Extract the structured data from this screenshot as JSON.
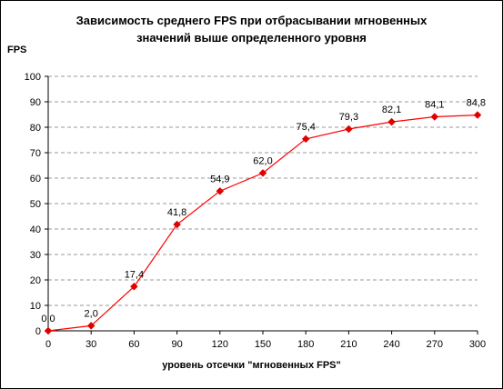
{
  "chart_data": {
    "type": "line",
    "title": "Зависимость среднего FPS при отбрасывании мгновенных значений выше определенного уровня",
    "title_lines": [
      "Зависимость среднего FPS при отбрасывании мгновенных",
      "значений выше определенного уровня"
    ],
    "ylabel": "FPS",
    "xlabel": "уровень отсечки \"мгновенных FPS\"",
    "xlim": [
      0,
      300
    ],
    "ylim": [
      0,
      100
    ],
    "x_ticks": [
      "0",
      "30",
      "60",
      "90",
      "120",
      "150",
      "180",
      "210",
      "240",
      "270",
      "300"
    ],
    "y_ticks": [
      "0",
      "10",
      "20",
      "30",
      "40",
      "50",
      "60",
      "70",
      "80",
      "90",
      "100"
    ],
    "grid": "horizontal-dashed",
    "legend": "none",
    "line_color": "#ff0000",
    "marker_color": "#e00000",
    "series": [
      {
        "x": [
          0,
          30,
          60,
          90,
          120,
          150,
          180,
          210,
          240,
          270,
          300
        ],
        "values": [
          0.0,
          2.0,
          17.4,
          41.8,
          54.9,
          62.0,
          75.4,
          79.3,
          82.1,
          84.1,
          84.8
        ],
        "labels": [
          "0,0",
          "2,0",
          "17,4",
          "41,8",
          "54,9",
          "62,0",
          "75,4",
          "79,3",
          "82,1",
          "84,1",
          "84,8"
        ]
      }
    ]
  }
}
